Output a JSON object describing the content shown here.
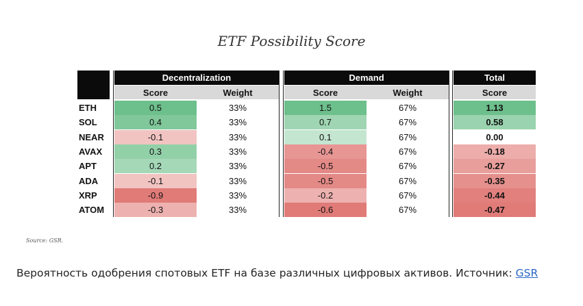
{
  "title": "ETF Possibility Score",
  "source": "Source: GSR.",
  "caption": {
    "text": "Вероятность одобрения спотовых ETF на базе различных цифровых активов. Источник: ",
    "link": "GSR"
  },
  "colors": {
    "header_bg": "#0b0b0b",
    "subheader_bg": "#d9d9d9",
    "green_strong": "#6dbf8b",
    "green_light": "#b9e0c6",
    "red_strong": "#e07b78",
    "red_light": "#f4d3d1",
    "link": "#2a66c5"
  },
  "chart_data": {
    "type": "table",
    "title": "ETF Possibility Score",
    "groups": [
      {
        "name": "Decentralization",
        "columns": [
          "Score",
          "Weight"
        ]
      },
      {
        "name": "Demand",
        "columns": [
          "Score",
          "Weight"
        ]
      },
      {
        "name": "Total",
        "columns": [
          "Score"
        ]
      }
    ],
    "rows": [
      {
        "asset": "ETH",
        "dec_score": "0.5",
        "dec_weight": "33%",
        "dem_score": "1.5",
        "dem_weight": "67%",
        "total": "1.13"
      },
      {
        "asset": "SOL",
        "dec_score": "0.4",
        "dec_weight": "33%",
        "dem_score": "0.7",
        "dem_weight": "67%",
        "total": "0.58"
      },
      {
        "asset": "NEAR",
        "dec_score": "-0.1",
        "dec_weight": "33%",
        "dem_score": "0.1",
        "dem_weight": "67%",
        "total": "0.00"
      },
      {
        "asset": "AVAX",
        "dec_score": "0.3",
        "dec_weight": "33%",
        "dem_score": "-0.4",
        "dem_weight": "67%",
        "total": "-0.18"
      },
      {
        "asset": "APT",
        "dec_score": "0.2",
        "dec_weight": "33%",
        "dem_score": "-0.5",
        "dem_weight": "67%",
        "total": "-0.27"
      },
      {
        "asset": "ADA",
        "dec_score": "-0.1",
        "dec_weight": "33%",
        "dem_score": "-0.5",
        "dem_weight": "67%",
        "total": "-0.35"
      },
      {
        "asset": "XRP",
        "dec_score": "-0.9",
        "dec_weight": "33%",
        "dem_score": "-0.2",
        "dem_weight": "67%",
        "total": "-0.44"
      },
      {
        "asset": "ATOM",
        "dec_score": "-0.3",
        "dec_weight": "33%",
        "dem_score": "-0.6",
        "dem_weight": "67%",
        "total": "-0.47"
      }
    ]
  }
}
